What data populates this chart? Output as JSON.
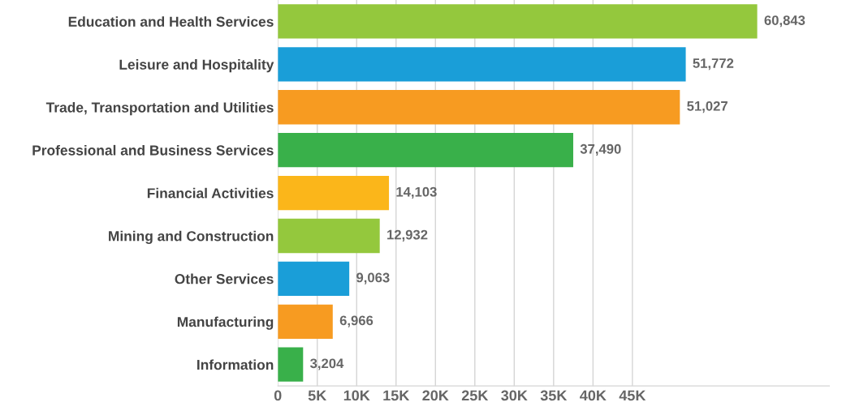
{
  "chart_data": {
    "type": "bar",
    "orientation": "horizontal",
    "categories": [
      "Education and Health Services",
      "Leisure and Hospitality",
      "Trade, Transportation and Utilities",
      "Professional and Business Services",
      "Financial Activities",
      "Mining and Construction",
      "Other Services",
      "Manufacturing",
      "Information"
    ],
    "values": [
      60843,
      51772,
      51027,
      37490,
      14103,
      12932,
      9063,
      6966,
      3204
    ],
    "colors": [
      "#94c83d",
      "#1a9ed8",
      "#f79b21",
      "#39b04a",
      "#fbb61a",
      "#94c83d",
      "#1a9ed8",
      "#f79b21",
      "#39b04a"
    ],
    "value_labels": [
      "60,843",
      "51,772",
      "51,027",
      "37,490",
      "14,103",
      "12,932",
      "9,063",
      "6,966",
      "3,204"
    ],
    "xlim": [
      0,
      70000
    ],
    "xticks": [
      0,
      {
        "value": 5000,
        "label": "5K"
      },
      {
        "value": 10000,
        "label": "10K"
      },
      {
        "value": 15000,
        "label": "15K"
      },
      {
        "value": 20000,
        "label": "20K"
      },
      {
        "value": 25000,
        "label": "25K"
      },
      {
        "value": 30000,
        "label": "30K"
      },
      {
        "value": 35000,
        "label": "35K"
      },
      {
        "value": 40000,
        "label": "40K"
      },
      {
        "value": 45000,
        "label": "45K"
      }
    ],
    "grid": "x",
    "legend": false
  }
}
